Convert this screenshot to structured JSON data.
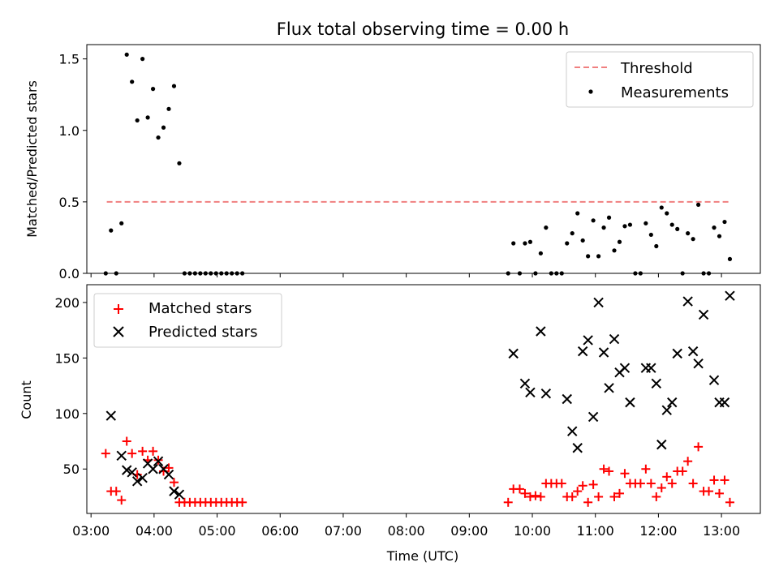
{
  "chart_data": [
    {
      "type": "scatter",
      "title": "Flux total observing time = 0.00 h",
      "ylabel": "Matched/Predicted stars",
      "xlim": [
        "02:56",
        "13:37"
      ],
      "ylim": [
        0,
        1.6
      ],
      "yticks": [
        0.0,
        0.5,
        1.0,
        1.5
      ],
      "ytick_labels": [
        "0.0",
        "0.5",
        "1.0",
        "1.5"
      ],
      "legend_position": "top-right",
      "threshold": {
        "name": "Threshold",
        "value": 0.5,
        "x_start": "03:15",
        "x_end": "13:07",
        "color": "#f08080",
        "style": "dashed"
      },
      "series": [
        {
          "name": "Measurements",
          "color": "#000000",
          "points": [
            [
              "03:14",
              0.0
            ],
            [
              "03:19",
              0.3
            ],
            [
              "03:24",
              0.0
            ],
            [
              "03:29",
              0.35
            ],
            [
              "03:34",
              1.53
            ],
            [
              "03:39",
              1.34
            ],
            [
              "03:44",
              1.07
            ],
            [
              "03:49",
              1.5
            ],
            [
              "03:54",
              1.09
            ],
            [
              "03:59",
              1.29
            ],
            [
              "04:04",
              0.95
            ],
            [
              "04:09",
              1.02
            ],
            [
              "04:14",
              1.15
            ],
            [
              "04:19",
              1.31
            ],
            [
              "04:24",
              0.77
            ],
            [
              "04:29",
              0.0
            ],
            [
              "04:34",
              0.0
            ],
            [
              "04:39",
              0.0
            ],
            [
              "04:44",
              0.0
            ],
            [
              "04:49",
              0.0
            ],
            [
              "04:54",
              0.0
            ],
            [
              "04:59",
              0.0
            ],
            [
              "05:04",
              0.0
            ],
            [
              "05:09",
              0.0
            ],
            [
              "05:14",
              0.0
            ],
            [
              "05:19",
              0.0
            ],
            [
              "05:24",
              0.0
            ],
            [
              "09:37",
              0.0
            ],
            [
              "09:42",
              0.21
            ],
            [
              "09:48",
              0.0
            ],
            [
              "09:53",
              0.21
            ],
            [
              "09:58",
              0.22
            ],
            [
              "10:03",
              0.0
            ],
            [
              "10:08",
              0.14
            ],
            [
              "10:13",
              0.32
            ],
            [
              "10:18",
              0.0
            ],
            [
              "10:23",
              0.0
            ],
            [
              "10:28",
              0.0
            ],
            [
              "10:33",
              0.21
            ],
            [
              "10:38",
              0.28
            ],
            [
              "10:43",
              0.42
            ],
            [
              "10:48",
              0.23
            ],
            [
              "10:53",
              0.12
            ],
            [
              "10:58",
              0.37
            ],
            [
              "11:03",
              0.12
            ],
            [
              "11:08",
              0.32
            ],
            [
              "11:13",
              0.39
            ],
            [
              "11:18",
              0.16
            ],
            [
              "11:23",
              0.22
            ],
            [
              "11:28",
              0.33
            ],
            [
              "11:33",
              0.34
            ],
            [
              "11:38",
              0.0
            ],
            [
              "11:43",
              0.0
            ],
            [
              "11:48",
              0.35
            ],
            [
              "11:53",
              0.27
            ],
            [
              "11:58",
              0.19
            ],
            [
              "12:03",
              0.46
            ],
            [
              "12:08",
              0.42
            ],
            [
              "12:13",
              0.34
            ],
            [
              "12:18",
              0.31
            ],
            [
              "12:23",
              0.0
            ],
            [
              "12:28",
              0.28
            ],
            [
              "12:33",
              0.24
            ],
            [
              "12:38",
              0.48
            ],
            [
              "12:43",
              0.0
            ],
            [
              "12:48",
              0.0
            ],
            [
              "12:53",
              0.32
            ],
            [
              "12:58",
              0.26
            ],
            [
              "13:03",
              0.36
            ],
            [
              "13:08",
              0.1
            ]
          ]
        }
      ]
    },
    {
      "type": "scatter",
      "xlabel": "Time (UTC)",
      "ylabel": "Count",
      "xlim": [
        "02:56",
        "13:37"
      ],
      "ylim": [
        10,
        216
      ],
      "xticks": [
        "03:00",
        "04:00",
        "05:00",
        "06:00",
        "07:00",
        "08:00",
        "09:00",
        "10:00",
        "11:00",
        "12:00",
        "13:00"
      ],
      "yticks": [
        50,
        100,
        150,
        200
      ],
      "ytick_labels": [
        "50",
        "100",
        "150",
        "200"
      ],
      "legend_position": "top-left",
      "series": [
        {
          "name": "Matched stars",
          "marker": "plus",
          "color": "#ff0000",
          "points": [
            [
              "03:14",
              64
            ],
            [
              "03:19",
              30
            ],
            [
              "03:24",
              30
            ],
            [
              "03:29",
              22
            ],
            [
              "03:34",
              75
            ],
            [
              "03:39",
              64
            ],
            [
              "03:44",
              45
            ],
            [
              "03:49",
              66
            ],
            [
              "03:54",
              58
            ],
            [
              "03:59",
              66
            ],
            [
              "04:04",
              58
            ],
            [
              "04:09",
              48
            ],
            [
              "04:14",
              51
            ],
            [
              "04:19",
              38
            ],
            [
              "04:24",
              20
            ],
            [
              "04:29",
              20
            ],
            [
              "04:34",
              20
            ],
            [
              "04:39",
              20
            ],
            [
              "04:44",
              20
            ],
            [
              "04:49",
              20
            ],
            [
              "04:54",
              20
            ],
            [
              "04:59",
              20
            ],
            [
              "05:04",
              20
            ],
            [
              "05:09",
              20
            ],
            [
              "05:14",
              20
            ],
            [
              "05:19",
              20
            ],
            [
              "05:24",
              20
            ],
            [
              "09:37",
              20
            ],
            [
              "09:42",
              32
            ],
            [
              "09:48",
              32
            ],
            [
              "09:53",
              28
            ],
            [
              "09:58",
              25
            ],
            [
              "10:03",
              26
            ],
            [
              "10:08",
              25
            ],
            [
              "10:13",
              37
            ],
            [
              "10:18",
              37
            ],
            [
              "10:23",
              37
            ],
            [
              "10:28",
              37
            ],
            [
              "10:33",
              25
            ],
            [
              "10:38",
              25
            ],
            [
              "10:43",
              30
            ],
            [
              "10:48",
              35
            ],
            [
              "10:53",
              20
            ],
            [
              "10:58",
              36
            ],
            [
              "11:03",
              25
            ],
            [
              "11:08",
              50
            ],
            [
              "11:13",
              48
            ],
            [
              "11:18",
              25
            ],
            [
              "11:23",
              28
            ],
            [
              "11:28",
              46
            ],
            [
              "11:33",
              37
            ],
            [
              "11:38",
              37
            ],
            [
              "11:43",
              37
            ],
            [
              "11:48",
              50
            ],
            [
              "11:53",
              37
            ],
            [
              "11:58",
              25
            ],
            [
              "12:03",
              33
            ],
            [
              "12:08",
              43
            ],
            [
              "12:13",
              37
            ],
            [
              "12:18",
              48
            ],
            [
              "12:23",
              48
            ],
            [
              "12:28",
              57
            ],
            [
              "12:33",
              37
            ],
            [
              "12:38",
              70
            ],
            [
              "12:43",
              30
            ],
            [
              "12:48",
              30
            ],
            [
              "12:53",
              40
            ],
            [
              "12:58",
              28
            ],
            [
              "13:03",
              40
            ],
            [
              "13:08",
              20
            ]
          ]
        },
        {
          "name": "Predicted stars",
          "marker": "x",
          "color": "#000000",
          "points": [
            [
              "03:19",
              98
            ],
            [
              "03:29",
              62
            ],
            [
              "03:34",
              49
            ],
            [
              "03:39",
              47
            ],
            [
              "03:44",
              39
            ],
            [
              "03:49",
              42
            ],
            [
              "03:54",
              55
            ],
            [
              "03:59",
              50
            ],
            [
              "04:04",
              57
            ],
            [
              "04:09",
              50
            ],
            [
              "04:14",
              45
            ],
            [
              "04:19",
              30
            ],
            [
              "04:24",
              27
            ],
            [
              "09:42",
              154
            ],
            [
              "09:53",
              127
            ],
            [
              "09:58",
              119
            ],
            [
              "10:08",
              174
            ],
            [
              "10:13",
              118
            ],
            [
              "10:33",
              113
            ],
            [
              "10:38",
              84
            ],
            [
              "10:43",
              69
            ],
            [
              "10:48",
              156
            ],
            [
              "10:53",
              166
            ],
            [
              "10:58",
              97
            ],
            [
              "11:03",
              200
            ],
            [
              "11:08",
              155
            ],
            [
              "11:13",
              123
            ],
            [
              "11:18",
              167
            ],
            [
              "11:23",
              137
            ],
            [
              "11:28",
              141
            ],
            [
              "11:33",
              110
            ],
            [
              "11:48",
              141
            ],
            [
              "11:53",
              141
            ],
            [
              "11:58",
              127
            ],
            [
              "12:03",
              72
            ],
            [
              "12:08",
              103
            ],
            [
              "12:13",
              110
            ],
            [
              "12:18",
              154
            ],
            [
              "12:28",
              201
            ],
            [
              "12:33",
              156
            ],
            [
              "12:38",
              145
            ],
            [
              "12:43",
              189
            ],
            [
              "12:53",
              130
            ],
            [
              "12:58",
              110
            ],
            [
              "13:03",
              110
            ],
            [
              "13:08",
              206
            ]
          ]
        }
      ]
    }
  ]
}
